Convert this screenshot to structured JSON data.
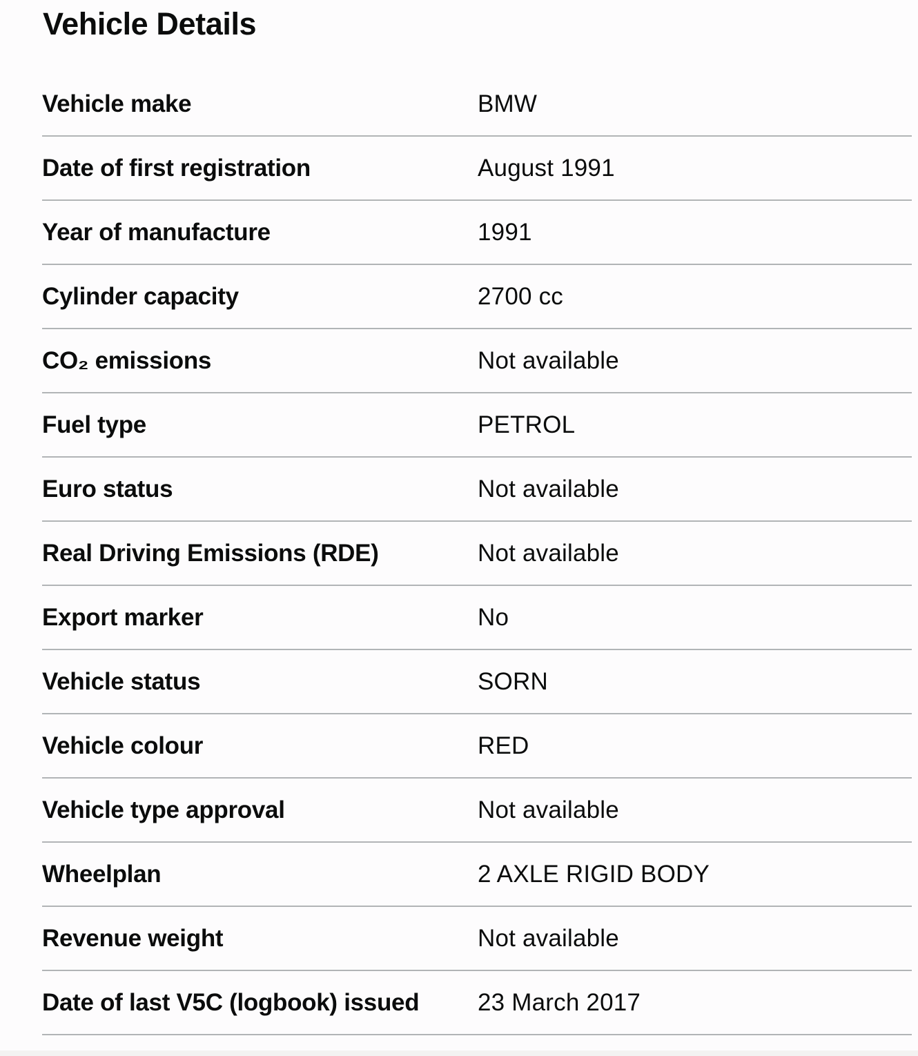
{
  "heading": "Vehicle Details",
  "rows": [
    {
      "key": "Vehicle make",
      "value": "BMW"
    },
    {
      "key": "Date of first registration",
      "value": "August 1991"
    },
    {
      "key": "Year of manufacture",
      "value": "1991"
    },
    {
      "key": "Cylinder capacity",
      "value": "2700 cc"
    },
    {
      "key": "CO₂ emissions",
      "value": "Not available"
    },
    {
      "key": "Fuel type",
      "value": "PETROL"
    },
    {
      "key": "Euro status",
      "value": "Not available"
    },
    {
      "key": "Real Driving Emissions (RDE)",
      "value": "Not available"
    },
    {
      "key": "Export marker",
      "value": "No"
    },
    {
      "key": "Vehicle status",
      "value": "SORN"
    },
    {
      "key": "Vehicle colour",
      "value": "RED"
    },
    {
      "key": "Vehicle type approval",
      "value": "Not available"
    },
    {
      "key": "Wheelplan",
      "value": "2 AXLE RIGID BODY"
    },
    {
      "key": "Revenue weight",
      "value": "Not available"
    },
    {
      "key": "Date of last V5C (logbook) issued",
      "value": "23 March 2017"
    }
  ]
}
